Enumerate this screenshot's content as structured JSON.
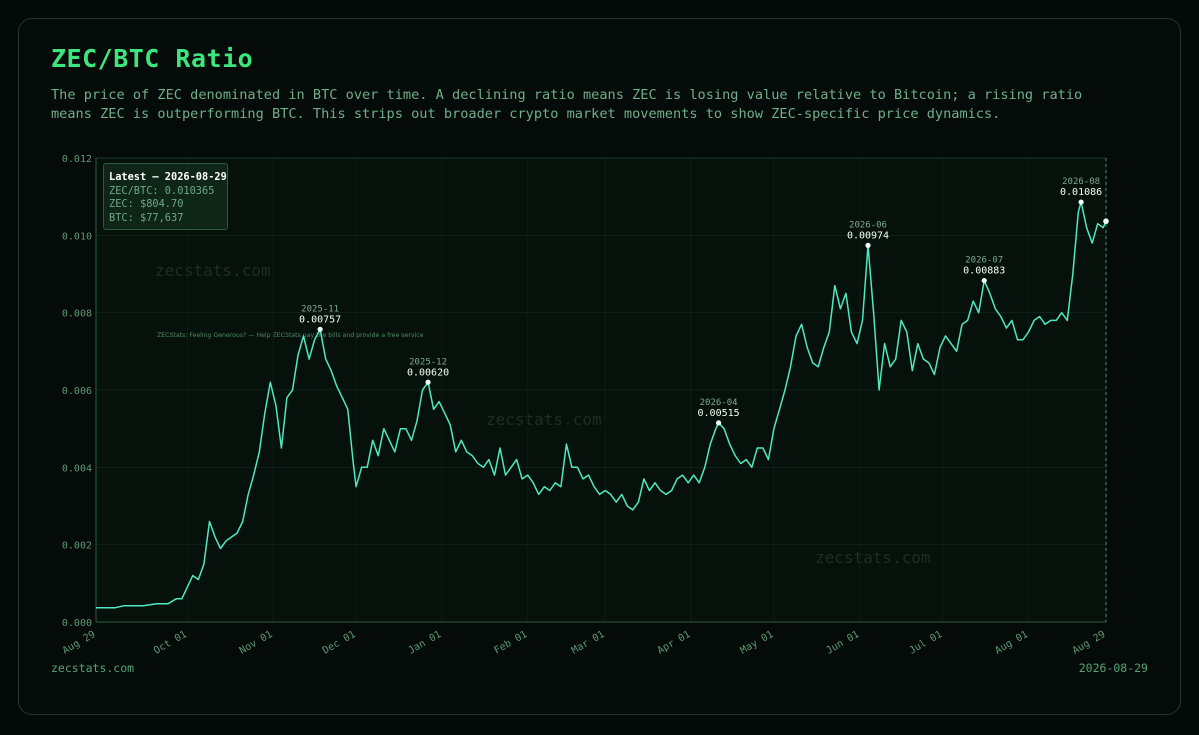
{
  "title": "ZEC/BTC Ratio",
  "subtitle": "The price of ZEC denominated in BTC over time. A declining ratio means ZEC is losing value relative to Bitcoin; a rising ratio means ZEC is outperforming BTC. This strips out broader crypto market movements to show ZEC-specific price dynamics.",
  "footer": {
    "left": "zecstats.com",
    "right": "2026-08-29"
  },
  "watermarks": [
    "zecstats.com",
    "zecstats.com",
    "zecstats.com"
  ],
  "promo_text": "ZECStats: Feeling Generous? — Help ZECStats pay the bills and provide a free service",
  "latest": {
    "heading": "Latest — 2026-08-29",
    "ratio": "ZEC/BTC: 0.010365",
    "zec": "ZEC: $804.70",
    "btc": "BTC: $77,637"
  },
  "colors": {
    "line": "#4fe8c3",
    "title": "#3ee57e",
    "accent": "#58a277",
    "background": "#050b08"
  },
  "chart_data": {
    "type": "line",
    "title": "ZEC/BTC Ratio",
    "xlabel": "",
    "ylabel": "",
    "ylim": [
      0,
      0.012
    ],
    "xlim": [
      "2025-08-29",
      "2026-08-29"
    ],
    "grid": true,
    "yticks": [
      "0.000",
      "0.002",
      "0.004",
      "0.006",
      "0.008",
      "0.010",
      "0.012"
    ],
    "xticks": [
      {
        "label": "Aug 29",
        "date": "2025-08-29"
      },
      {
        "label": "Oct 01",
        "date": "2025-10-01"
      },
      {
        "label": "Nov 01",
        "date": "2025-11-01"
      },
      {
        "label": "Dec 01",
        "date": "2025-12-01"
      },
      {
        "label": "Jan 01",
        "date": "2026-01-01"
      },
      {
        "label": "Feb 01",
        "date": "2026-02-01"
      },
      {
        "label": "Mar 01",
        "date": "2026-03-01"
      },
      {
        "label": "Apr 01",
        "date": "2026-04-01"
      },
      {
        "label": "May 01",
        "date": "2026-05-01"
      },
      {
        "label": "Jun 01",
        "date": "2026-06-01"
      },
      {
        "label": "Jul 01",
        "date": "2026-07-01"
      },
      {
        "label": "Aug 01",
        "date": "2026-08-01"
      },
      {
        "label": "Aug 29",
        "date": "2026-08-29"
      }
    ],
    "annotations": [
      {
        "month": "2025-11",
        "value": "0.00757",
        "date": "2025-11-18",
        "y": 0.00757
      },
      {
        "month": "2025-12",
        "value": "0.00620",
        "date": "2025-12-27",
        "y": 0.0062
      },
      {
        "month": "2026-04",
        "value": "0.00515",
        "date": "2026-04-11",
        "y": 0.00515
      },
      {
        "month": "2026-06",
        "value": "0.00974",
        "date": "2026-06-04",
        "y": 0.00974
      },
      {
        "month": "2026-07",
        "value": "0.00883",
        "date": "2026-07-16",
        "y": 0.00883
      },
      {
        "month": "2026-08",
        "value": "0.01086",
        "date": "2026-08-20",
        "y": 0.01086
      }
    ],
    "series": [
      {
        "points": [
          [
            "2025-08-29",
            0.00037
          ],
          [
            "2025-09-05",
            0.00037
          ],
          [
            "2025-09-08",
            0.00042
          ],
          [
            "2025-09-15",
            0.00042
          ],
          [
            "2025-09-20",
            0.00047
          ],
          [
            "2025-09-24",
            0.00047
          ],
          [
            "2025-09-27",
            0.0006
          ],
          [
            "2025-09-29",
            0.0006
          ],
          [
            "2025-10-01",
            0.0009
          ],
          [
            "2025-10-03",
            0.0012
          ],
          [
            "2025-10-05",
            0.0011
          ],
          [
            "2025-10-07",
            0.0015
          ],
          [
            "2025-10-09",
            0.0026
          ],
          [
            "2025-10-11",
            0.0022
          ],
          [
            "2025-10-13",
            0.0019
          ],
          [
            "2025-10-15",
            0.0021
          ],
          [
            "2025-10-17",
            0.0022
          ],
          [
            "2025-10-19",
            0.0023
          ],
          [
            "2025-10-21",
            0.0026
          ],
          [
            "2025-10-23",
            0.0033
          ],
          [
            "2025-10-25",
            0.0038
          ],
          [
            "2025-10-27",
            0.0044
          ],
          [
            "2025-10-29",
            0.0054
          ],
          [
            "2025-10-31",
            0.0062
          ],
          [
            "2025-11-02",
            0.0056
          ],
          [
            "2025-11-04",
            0.0045
          ],
          [
            "2025-11-06",
            0.0058
          ],
          [
            "2025-11-08",
            0.006
          ],
          [
            "2025-11-10",
            0.0069
          ],
          [
            "2025-11-12",
            0.0074
          ],
          [
            "2025-11-14",
            0.0068
          ],
          [
            "2025-11-16",
            0.0073
          ],
          [
            "2025-11-18",
            0.00757
          ],
          [
            "2025-11-20",
            0.0068
          ],
          [
            "2025-11-22",
            0.0065
          ],
          [
            "2025-11-24",
            0.0061
          ],
          [
            "2025-11-26",
            0.0058
          ],
          [
            "2025-11-28",
            0.0055
          ],
          [
            "2025-11-30",
            0.0041
          ],
          [
            "2025-12-01",
            0.0035
          ],
          [
            "2025-12-03",
            0.004
          ],
          [
            "2025-12-05",
            0.004
          ],
          [
            "2025-12-07",
            0.0047
          ],
          [
            "2025-12-09",
            0.0043
          ],
          [
            "2025-12-11",
            0.005
          ],
          [
            "2025-12-13",
            0.0047
          ],
          [
            "2025-12-15",
            0.0044
          ],
          [
            "2025-12-17",
            0.005
          ],
          [
            "2025-12-19",
            0.005
          ],
          [
            "2025-12-21",
            0.0047
          ],
          [
            "2025-12-23",
            0.0052
          ],
          [
            "2025-12-25",
            0.006
          ],
          [
            "2025-12-27",
            0.0062
          ],
          [
            "2025-12-29",
            0.0055
          ],
          [
            "2025-12-31",
            0.0057
          ],
          [
            "2026-01-02",
            0.0054
          ],
          [
            "2026-01-04",
            0.0051
          ],
          [
            "2026-01-06",
            0.0044
          ],
          [
            "2026-01-08",
            0.0047
          ],
          [
            "2026-01-10",
            0.0044
          ],
          [
            "2026-01-12",
            0.0043
          ],
          [
            "2026-01-14",
            0.0041
          ],
          [
            "2026-01-16",
            0.004
          ],
          [
            "2026-01-18",
            0.0042
          ],
          [
            "2026-01-20",
            0.0038
          ],
          [
            "2026-01-22",
            0.0045
          ],
          [
            "2026-01-24",
            0.0038
          ],
          [
            "2026-01-26",
            0.004
          ],
          [
            "2026-01-28",
            0.0042
          ],
          [
            "2026-01-30",
            0.0037
          ],
          [
            "2026-02-01",
            0.0038
          ],
          [
            "2026-02-03",
            0.0036
          ],
          [
            "2026-02-05",
            0.0033
          ],
          [
            "2026-02-07",
            0.0035
          ],
          [
            "2026-02-09",
            0.0034
          ],
          [
            "2026-02-11",
            0.0036
          ],
          [
            "2026-02-13",
            0.0035
          ],
          [
            "2026-02-15",
            0.0046
          ],
          [
            "2026-02-17",
            0.004
          ],
          [
            "2026-02-19",
            0.004
          ],
          [
            "2026-02-21",
            0.0037
          ],
          [
            "2026-02-23",
            0.0038
          ],
          [
            "2026-02-25",
            0.0035
          ],
          [
            "2026-02-27",
            0.0033
          ],
          [
            "2026-03-01",
            0.0034
          ],
          [
            "2026-03-03",
            0.0033
          ],
          [
            "2026-03-05",
            0.0031
          ],
          [
            "2026-03-07",
            0.0033
          ],
          [
            "2026-03-09",
            0.003
          ],
          [
            "2026-03-11",
            0.0029
          ],
          [
            "2026-03-13",
            0.0031
          ],
          [
            "2026-03-15",
            0.0037
          ],
          [
            "2026-03-17",
            0.0034
          ],
          [
            "2026-03-19",
            0.0036
          ],
          [
            "2026-03-21",
            0.0034
          ],
          [
            "2026-03-23",
            0.0033
          ],
          [
            "2026-03-25",
            0.0034
          ],
          [
            "2026-03-27",
            0.0037
          ],
          [
            "2026-03-29",
            0.0038
          ],
          [
            "2026-03-31",
            0.0036
          ],
          [
            "2026-04-02",
            0.0038
          ],
          [
            "2026-04-04",
            0.0036
          ],
          [
            "2026-04-06",
            0.004
          ],
          [
            "2026-04-08",
            0.0046
          ],
          [
            "2026-04-10",
            0.005
          ],
          [
            "2026-04-11",
            0.00515
          ],
          [
            "2026-04-13",
            0.005
          ],
          [
            "2026-04-15",
            0.0046
          ],
          [
            "2026-04-17",
            0.0043
          ],
          [
            "2026-04-19",
            0.0041
          ],
          [
            "2026-04-21",
            0.0042
          ],
          [
            "2026-04-23",
            0.004
          ],
          [
            "2026-04-25",
            0.0045
          ],
          [
            "2026-04-27",
            0.0045
          ],
          [
            "2026-04-29",
            0.0042
          ],
          [
            "2026-05-01",
            0.005
          ],
          [
            "2026-05-03",
            0.0055
          ],
          [
            "2026-05-05",
            0.006
          ],
          [
            "2026-05-07",
            0.0066
          ],
          [
            "2026-05-09",
            0.0074
          ],
          [
            "2026-05-11",
            0.0077
          ],
          [
            "2026-05-13",
            0.0071
          ],
          [
            "2026-05-15",
            0.0067
          ],
          [
            "2026-05-17",
            0.0066
          ],
          [
            "2026-05-19",
            0.0071
          ],
          [
            "2026-05-21",
            0.0075
          ],
          [
            "2026-05-23",
            0.0087
          ],
          [
            "2026-05-25",
            0.0081
          ],
          [
            "2026-05-27",
            0.0085
          ],
          [
            "2026-05-29",
            0.0075
          ],
          [
            "2026-05-31",
            0.0072
          ],
          [
            "2026-06-02",
            0.0078
          ],
          [
            "2026-06-04",
            0.00974
          ],
          [
            "2026-06-06",
            0.008
          ],
          [
            "2026-06-08",
            0.006
          ],
          [
            "2026-06-10",
            0.0072
          ],
          [
            "2026-06-12",
            0.0066
          ],
          [
            "2026-06-14",
            0.0068
          ],
          [
            "2026-06-16",
            0.0078
          ],
          [
            "2026-06-18",
            0.0075
          ],
          [
            "2026-06-20",
            0.0065
          ],
          [
            "2026-06-22",
            0.0072
          ],
          [
            "2026-06-24",
            0.0068
          ],
          [
            "2026-06-26",
            0.0067
          ],
          [
            "2026-06-28",
            0.0064
          ],
          [
            "2026-06-30",
            0.0071
          ],
          [
            "2026-07-02",
            0.0074
          ],
          [
            "2026-07-04",
            0.0072
          ],
          [
            "2026-07-06",
            0.007
          ],
          [
            "2026-07-08",
            0.0077
          ],
          [
            "2026-07-10",
            0.0078
          ],
          [
            "2026-07-12",
            0.0083
          ],
          [
            "2026-07-14",
            0.008
          ],
          [
            "2026-07-16",
            0.00883
          ],
          [
            "2026-07-18",
            0.0085
          ],
          [
            "2026-07-20",
            0.0081
          ],
          [
            "2026-07-22",
            0.0079
          ],
          [
            "2026-07-24",
            0.0076
          ],
          [
            "2026-07-26",
            0.0078
          ],
          [
            "2026-07-28",
            0.0073
          ],
          [
            "2026-07-30",
            0.0073
          ],
          [
            "2026-08-01",
            0.0075
          ],
          [
            "2026-08-03",
            0.0078
          ],
          [
            "2026-08-05",
            0.0079
          ],
          [
            "2026-08-07",
            0.0077
          ],
          [
            "2026-08-09",
            0.0078
          ],
          [
            "2026-08-11",
            0.0078
          ],
          [
            "2026-08-13",
            0.008
          ],
          [
            "2026-08-15",
            0.0078
          ],
          [
            "2026-08-17",
            0.009
          ],
          [
            "2026-08-19",
            0.0106
          ],
          [
            "2026-08-20",
            0.01086
          ],
          [
            "2026-08-22",
            0.0102
          ],
          [
            "2026-08-24",
            0.0098
          ],
          [
            "2026-08-26",
            0.0103
          ],
          [
            "2026-08-28",
            0.0102
          ],
          [
            "2026-08-29",
            0.010365
          ]
        ]
      }
    ]
  }
}
